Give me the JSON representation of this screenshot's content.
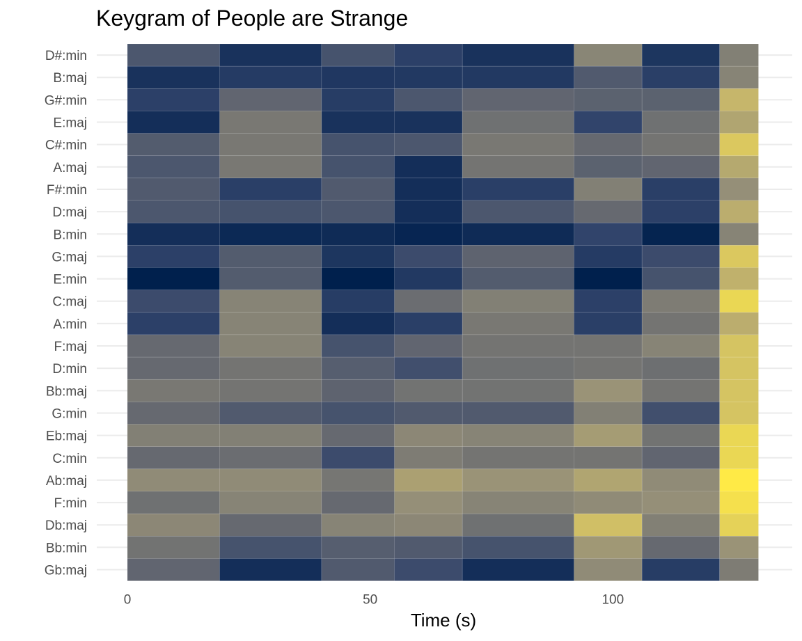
{
  "chart_data": {
    "type": "heatmap",
    "title": "Keygram of People are Strange",
    "xlabel": "Time (s)",
    "ylabel": "",
    "xlim": [
      0,
      130.3
    ],
    "x_ticks": [
      0,
      50,
      100
    ],
    "x_tick_labels": [
      "0",
      "50",
      "100"
    ],
    "x_bins": [
      [
        0,
        19
      ],
      [
        19,
        40
      ],
      [
        40,
        55
      ],
      [
        55,
        69
      ],
      [
        69,
        92
      ],
      [
        92,
        106
      ],
      [
        106,
        122
      ],
      [
        122,
        130
      ]
    ],
    "keys": [
      "D#:min",
      "B:maj",
      "G#:min",
      "E:maj",
      "C#:min",
      "A:maj",
      "F#:min",
      "D:maj",
      "B:min",
      "G:maj",
      "E:min",
      "C:maj",
      "A:min",
      "F:maj",
      "D:min",
      "Bb:maj",
      "G:min",
      "Eb:maj",
      "C:min",
      "Ab:maj",
      "F:min",
      "Db:maj",
      "Bb:min",
      "Gb:maj"
    ],
    "values": [
      [
        0.3,
        0.1,
        0.28,
        0.18,
        0.1,
        0.55,
        0.12,
        0.52
      ],
      [
        0.1,
        0.15,
        0.13,
        0.14,
        0.14,
        0.32,
        0.17,
        0.54
      ],
      [
        0.18,
        0.38,
        0.16,
        0.3,
        0.38,
        0.36,
        0.36,
        0.78
      ],
      [
        0.08,
        0.48,
        0.1,
        0.1,
        0.44,
        0.2,
        0.44,
        0.7
      ],
      [
        0.33,
        0.48,
        0.28,
        0.3,
        0.48,
        0.4,
        0.46,
        0.86
      ],
      [
        0.3,
        0.48,
        0.28,
        0.08,
        0.46,
        0.36,
        0.38,
        0.72
      ],
      [
        0.32,
        0.17,
        0.32,
        0.08,
        0.17,
        0.52,
        0.17,
        0.6
      ],
      [
        0.3,
        0.28,
        0.3,
        0.08,
        0.3,
        0.4,
        0.18,
        0.74
      ],
      [
        0.08,
        0.05,
        0.06,
        0.03,
        0.06,
        0.2,
        0.02,
        0.54
      ],
      [
        0.18,
        0.33,
        0.12,
        0.24,
        0.37,
        0.15,
        0.24,
        0.86
      ],
      [
        0.0,
        0.33,
        0.0,
        0.14,
        0.33,
        0.0,
        0.28,
        0.76
      ],
      [
        0.24,
        0.54,
        0.16,
        0.42,
        0.52,
        0.18,
        0.5,
        0.92
      ],
      [
        0.18,
        0.54,
        0.08,
        0.17,
        0.48,
        0.17,
        0.46,
        0.74
      ],
      [
        0.4,
        0.54,
        0.28,
        0.38,
        0.46,
        0.46,
        0.54,
        0.84
      ],
      [
        0.4,
        0.46,
        0.34,
        0.26,
        0.44,
        0.46,
        0.43,
        0.84
      ],
      [
        0.48,
        0.46,
        0.37,
        0.45,
        0.45,
        0.62,
        0.46,
        0.84
      ],
      [
        0.4,
        0.32,
        0.28,
        0.32,
        0.32,
        0.52,
        0.26,
        0.84
      ],
      [
        0.52,
        0.52,
        0.4,
        0.56,
        0.54,
        0.66,
        0.45,
        0.92
      ],
      [
        0.4,
        0.42,
        0.24,
        0.5,
        0.46,
        0.46,
        0.38,
        0.92
      ],
      [
        0.58,
        0.58,
        0.47,
        0.68,
        0.62,
        0.7,
        0.58,
        1.0
      ],
      [
        0.44,
        0.54,
        0.4,
        0.6,
        0.54,
        0.58,
        0.6,
        0.96
      ],
      [
        0.56,
        0.4,
        0.54,
        0.56,
        0.44,
        0.82,
        0.52,
        0.9
      ],
      [
        0.45,
        0.28,
        0.34,
        0.32,
        0.28,
        0.64,
        0.4,
        0.62
      ],
      [
        0.38,
        0.08,
        0.32,
        0.24,
        0.08,
        0.58,
        0.16,
        0.5
      ]
    ],
    "colormap": [
      "#00204d",
      "#31446b",
      "#666970",
      "#958f78",
      "#cbba69",
      "#ffea46"
    ],
    "grid": true,
    "legend": "none"
  }
}
